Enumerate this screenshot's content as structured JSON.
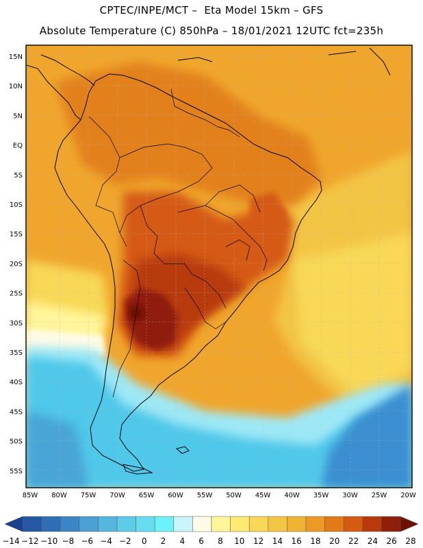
{
  "header": {
    "line1": "CPTEC/INPE/MCT –  Eta Model 15km – GFS",
    "line2": "Absolute Temperature (C) 850hPa – 18/01/2021 12UTC fct=235h"
  },
  "map": {
    "lat_labels": [
      "15N",
      "10N",
      "5N",
      "EQ",
      "5S",
      "10S",
      "15S",
      "20S",
      "25S",
      "30S",
      "35S",
      "40S",
      "45S",
      "50S",
      "55S"
    ],
    "lon_labels": [
      "85W",
      "80W",
      "75W",
      "70W",
      "65W",
      "60W",
      "55W",
      "50W",
      "45W",
      "40W",
      "35W",
      "30W",
      "25W",
      "20W"
    ],
    "colors": {
      "ocean_cold": "#3a8fd0",
      "ocean_cool": "#4fc8ea",
      "ocean_mild": "#9ee8f6",
      "warm_yellow": "#f2c84a",
      "orange": "#f0a62c",
      "deep_orange": "#e2811f",
      "red_brown": "#c2511a",
      "dark_red": "#8c1e10",
      "coast": "#000000"
    }
  },
  "colorbar": {
    "labels": [
      "-14",
      "-12",
      "-10",
      "-8",
      "-6",
      "-4",
      "-2",
      "0",
      "2",
      "4",
      "6",
      "8",
      "10",
      "12",
      "14",
      "16",
      "18",
      "20",
      "22",
      "24",
      "26",
      "28"
    ],
    "colors": [
      "#1b3f8f",
      "#2557a5",
      "#2f6eb6",
      "#3a86c6",
      "#4a9fd3",
      "#56b7de",
      "#5fcbe6",
      "#66dcef",
      "#6cf2f8",
      "#c9f4fb",
      "#fffbe6",
      "#fff59a",
      "#fdea70",
      "#f8d856",
      "#f3c544",
      "#f0b334",
      "#ec9a26",
      "#e27a18",
      "#d55a12",
      "#b83a0c",
      "#8f1f08",
      "#6d1106"
    ]
  }
}
